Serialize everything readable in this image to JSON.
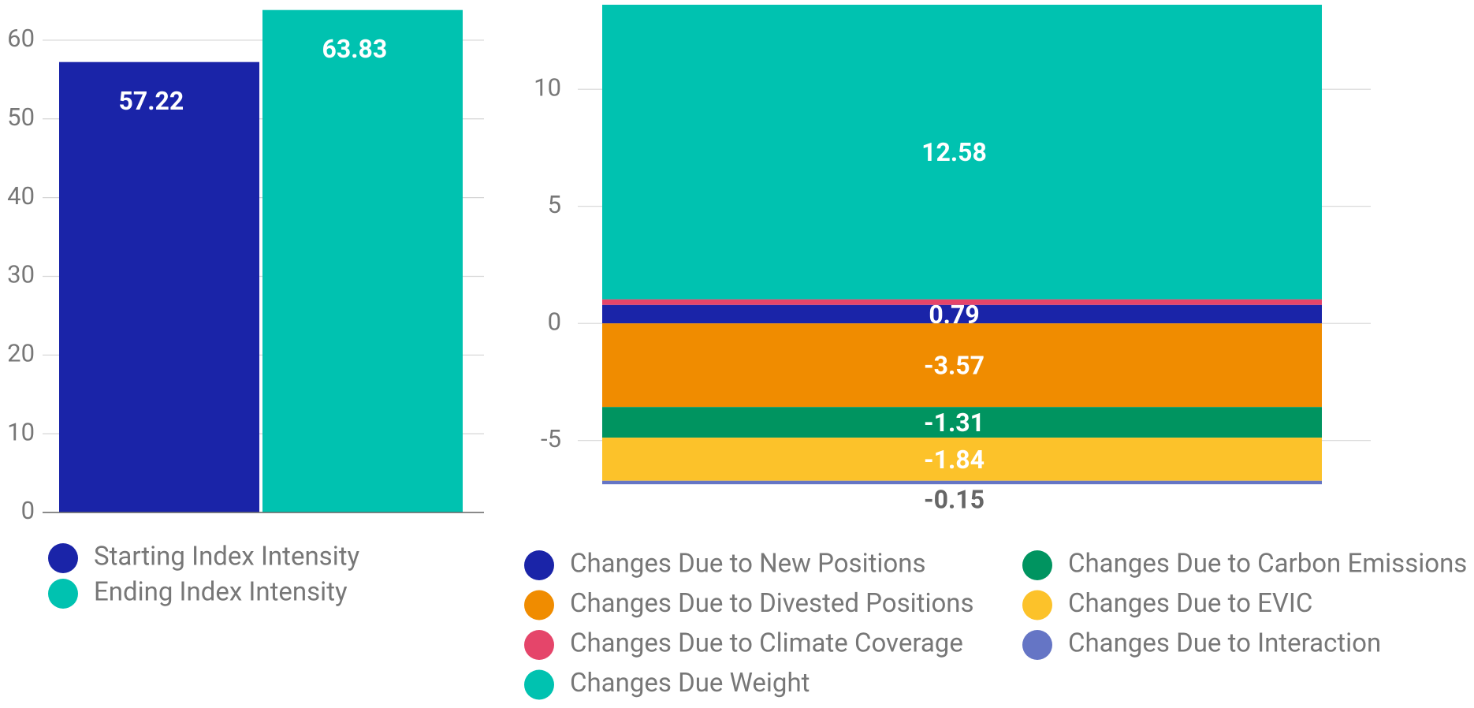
{
  "chart_data": [
    {
      "type": "bar",
      "ylim": [
        0,
        64.5
      ],
      "yticks": [
        0,
        10,
        20,
        30,
        40,
        50,
        60
      ],
      "grid": true,
      "series": [
        {
          "name": "Starting Index Intensity",
          "color": "#1a24a8",
          "values": [
            57.22
          ]
        },
        {
          "name": "Ending Index Intensity",
          "color": "#00c2b0",
          "values": [
            63.83
          ]
        }
      ]
    },
    {
      "type": "stacked_bar",
      "ylim": [
        -7.2,
        13.61
      ],
      "yticks": [
        -5,
        0,
        5,
        10
      ],
      "grid": true,
      "series": [
        {
          "name": "Changes Due to New Positions",
          "color": "#1a24a8",
          "values": [
            0.79
          ]
        },
        {
          "name": "Changes Due to Divested Positions",
          "color": "#f08c00",
          "values": [
            -3.57
          ]
        },
        {
          "name": "Changes Due to Climate Coverage",
          "color": "#e5456a",
          "values": [
            0.24
          ],
          "labels": false
        },
        {
          "name": "Changes Due Weight",
          "color": "#00c2b0",
          "values": [
            12.58
          ]
        },
        {
          "name": "Changes Due to Carbon Emissions",
          "color": "#009460",
          "values": [
            -1.31
          ]
        },
        {
          "name": "Changes Due to EVIC",
          "color": "#fcc22a",
          "values": [
            -1.84
          ]
        },
        {
          "name": "Changes Due to Interaction",
          "color": "#6575c5",
          "values": [
            -0.15
          ]
        }
      ]
    }
  ]
}
